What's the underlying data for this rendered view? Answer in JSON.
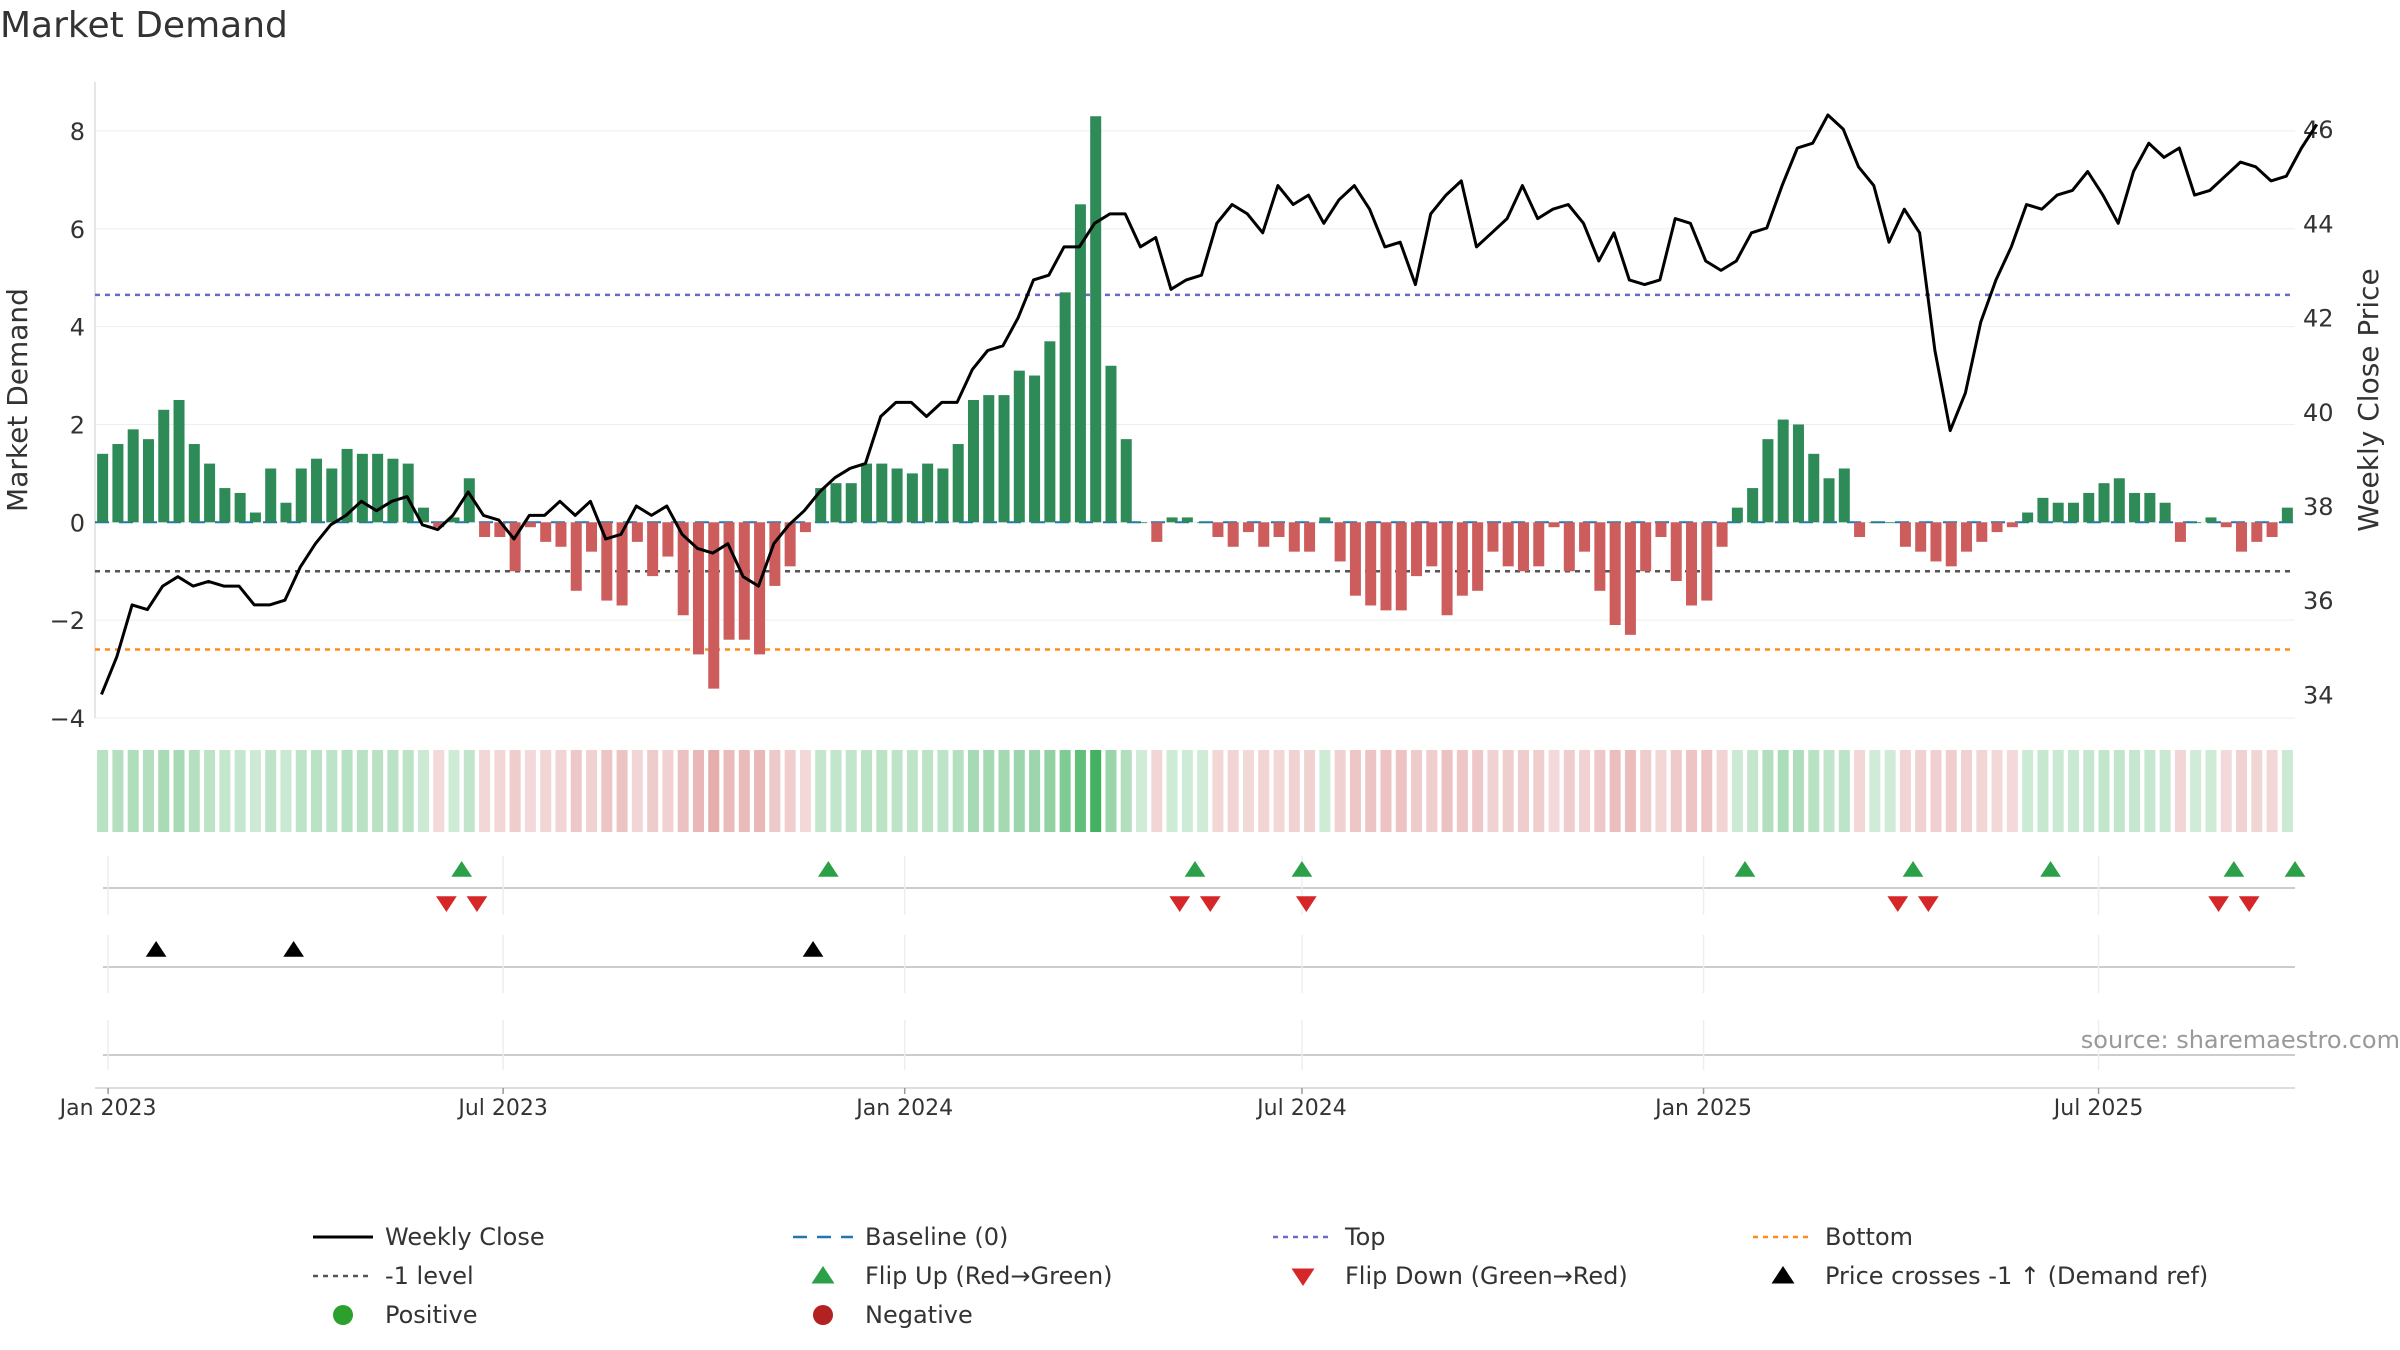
{
  "chart_data": {
    "type": "bar+line",
    "title": "Market Demand",
    "ylabel_left": "Market Demand",
    "ylabel_right": "Weekly Close Price",
    "ylim_left": [
      -4,
      9
    ],
    "ylim_right": [
      33.5,
      47
    ],
    "yticks_left": [
      8,
      6,
      4,
      2,
      0,
      -2,
      -4
    ],
    "yticks_left_labels": [
      "8",
      "6",
      "4",
      "2",
      "0",
      "−2",
      "−4"
    ],
    "yticks_right": [
      46,
      44,
      42,
      40,
      38,
      36,
      34
    ],
    "x_start": "2022-12-26",
    "x_end": "2025-09-29",
    "xticks": [
      {
        "date": "2023-01-01",
        "label": "Jan 2023"
      },
      {
        "date": "2023-07-01",
        "label": "Jul 2023"
      },
      {
        "date": "2024-01-01",
        "label": "Jan 2024"
      },
      {
        "date": "2024-07-01",
        "label": "Jul 2024"
      },
      {
        "date": "2025-01-01",
        "label": "Jan 2025"
      },
      {
        "date": "2025-07-01",
        "label": "Jul 2025"
      }
    ],
    "bar_start_date": "2022-12-26",
    "bar_interval_days": 7,
    "demand": [
      1.4,
      1.6,
      1.9,
      1.7,
      2.3,
      2.5,
      1.6,
      1.2,
      0.7,
      0.6,
      0.2,
      1.1,
      0.4,
      1.1,
      1.3,
      1.1,
      1.5,
      1.4,
      1.4,
      1.3,
      1.2,
      0.3,
      -0.1,
      0.1,
      0.9,
      -0.3,
      -0.3,
      -1.0,
      -0.1,
      -0.4,
      -0.5,
      -1.4,
      -0.6,
      -1.6,
      -1.7,
      -0.4,
      -1.1,
      -0.7,
      -1.9,
      -2.7,
      -3.4,
      -2.4,
      -2.4,
      -2.7,
      -1.3,
      -0.9,
      -0.2,
      0.7,
      0.8,
      0.8,
      1.2,
      1.2,
      1.1,
      1.0,
      1.2,
      1.1,
      1.6,
      2.5,
      2.6,
      2.6,
      3.1,
      3.0,
      3.7,
      4.7,
      6.5,
      8.3,
      3.2,
      1.7,
      0.0,
      -0.4,
      0.1,
      0.1,
      0.0,
      -0.3,
      -0.5,
      -0.2,
      -0.5,
      -0.3,
      -0.6,
      -0.6,
      0.1,
      -0.8,
      -1.5,
      -1.7,
      -1.8,
      -1.8,
      -1.1,
      -0.9,
      -1.9,
      -1.5,
      -1.4,
      -0.6,
      -0.9,
      -1.0,
      -0.9,
      -0.1,
      -1.0,
      -0.6,
      -1.4,
      -2.1,
      -2.3,
      -1.0,
      -0.3,
      -1.2,
      -1.7,
      -1.6,
      -0.5,
      0.3,
      0.7,
      1.7,
      2.1,
      2.0,
      1.4,
      0.9,
      1.1,
      -0.3,
      0.0,
      0.0,
      -0.5,
      -0.6,
      -0.8,
      -0.9,
      -0.6,
      -0.4,
      -0.2,
      -0.1,
      0.2,
      0.5,
      0.4,
      0.4,
      0.6,
      0.8,
      0.9,
      0.6,
      0.6,
      0.4,
      -0.4,
      0.0,
      0.1,
      -0.1,
      -0.6,
      -0.4,
      -0.3,
      0.3
    ],
    "price_series": [
      [
        "2022-12-29",
        34.0
      ],
      [
        "2023-01-05",
        34.8
      ],
      [
        "2023-01-12",
        35.9
      ],
      [
        "2023-01-19",
        35.8
      ],
      [
        "2023-01-26",
        36.3
      ],
      [
        "2023-02-02",
        36.5
      ],
      [
        "2023-02-09",
        36.3
      ],
      [
        "2023-02-16",
        36.4
      ],
      [
        "2023-02-23",
        36.3
      ],
      [
        "2023-03-02",
        36.3
      ],
      [
        "2023-03-09",
        35.9
      ],
      [
        "2023-03-16",
        35.9
      ],
      [
        "2023-03-23",
        36.0
      ],
      [
        "2023-03-30",
        36.7
      ],
      [
        "2023-04-06",
        37.2
      ],
      [
        "2023-04-13",
        37.6
      ],
      [
        "2023-04-20",
        37.8
      ],
      [
        "2023-04-27",
        38.1
      ],
      [
        "2023-05-04",
        37.9
      ],
      [
        "2023-05-11",
        38.1
      ],
      [
        "2023-05-18",
        38.2
      ],
      [
        "2023-05-25",
        37.6
      ],
      [
        "2023-06-01",
        37.5
      ],
      [
        "2023-06-08",
        37.8
      ],
      [
        "2023-06-15",
        38.3
      ],
      [
        "2023-06-22",
        37.8
      ],
      [
        "2023-06-29",
        37.7
      ],
      [
        "2023-07-06",
        37.3
      ],
      [
        "2023-07-13",
        37.8
      ],
      [
        "2023-07-20",
        37.8
      ],
      [
        "2023-07-27",
        38.1
      ],
      [
        "2023-08-03",
        37.8
      ],
      [
        "2023-08-10",
        38.1
      ],
      [
        "2023-08-17",
        37.3
      ],
      [
        "2023-08-24",
        37.4
      ],
      [
        "2023-08-31",
        38.0
      ],
      [
        "2023-09-07",
        37.8
      ],
      [
        "2023-09-14",
        38.0
      ],
      [
        "2023-09-21",
        37.4
      ],
      [
        "2023-09-28",
        37.1
      ],
      [
        "2023-10-05",
        37.0
      ],
      [
        "2023-10-12",
        37.2
      ],
      [
        "2023-10-19",
        36.5
      ],
      [
        "2023-10-26",
        36.3
      ],
      [
        "2023-11-02",
        37.2
      ],
      [
        "2023-11-09",
        37.6
      ],
      [
        "2023-11-16",
        37.9
      ],
      [
        "2023-11-23",
        38.3
      ],
      [
        "2023-11-30",
        38.6
      ],
      [
        "2023-12-07",
        38.8
      ],
      [
        "2023-12-14",
        38.9
      ],
      [
        "2023-12-21",
        39.9
      ],
      [
        "2023-12-28",
        40.2
      ],
      [
        "2024-01-04",
        40.2
      ],
      [
        "2024-01-11",
        39.9
      ],
      [
        "2024-01-18",
        40.2
      ],
      [
        "2024-01-25",
        40.2
      ],
      [
        "2024-02-01",
        40.9
      ],
      [
        "2024-02-08",
        41.3
      ],
      [
        "2024-02-15",
        41.4
      ],
      [
        "2024-02-22",
        42.0
      ],
      [
        "2024-02-29",
        42.8
      ],
      [
        "2024-03-07",
        42.9
      ],
      [
        "2024-03-14",
        43.5
      ],
      [
        "2024-03-21",
        43.5
      ],
      [
        "2024-03-28",
        44.0
      ],
      [
        "2024-04-04",
        44.2
      ],
      [
        "2024-04-11",
        44.2
      ],
      [
        "2024-04-18",
        43.5
      ],
      [
        "2024-04-25",
        43.7
      ],
      [
        "2024-05-02",
        42.6
      ],
      [
        "2024-05-09",
        42.8
      ],
      [
        "2024-05-16",
        42.9
      ],
      [
        "2024-05-23",
        44.0
      ],
      [
        "2024-05-30",
        44.4
      ],
      [
        "2024-06-06",
        44.2
      ],
      [
        "2024-06-13",
        43.8
      ],
      [
        "2024-06-20",
        44.8
      ],
      [
        "2024-06-27",
        44.4
      ],
      [
        "2024-07-04",
        44.6
      ],
      [
        "2024-07-11",
        44.0
      ],
      [
        "2024-07-18",
        44.5
      ],
      [
        "2024-07-25",
        44.8
      ],
      [
        "2024-08-01",
        44.3
      ],
      [
        "2024-08-08",
        43.5
      ],
      [
        "2024-08-15",
        43.6
      ],
      [
        "2024-08-22",
        42.7
      ],
      [
        "2024-08-29",
        44.2
      ],
      [
        "2024-09-05",
        44.6
      ],
      [
        "2024-09-12",
        44.9
      ],
      [
        "2024-09-19",
        43.5
      ],
      [
        "2024-09-26",
        43.8
      ],
      [
        "2024-10-03",
        44.1
      ],
      [
        "2024-10-10",
        44.8
      ],
      [
        "2024-10-17",
        44.1
      ],
      [
        "2024-10-24",
        44.3
      ],
      [
        "2024-10-31",
        44.4
      ],
      [
        "2024-11-07",
        44.0
      ],
      [
        "2024-11-14",
        43.2
      ],
      [
        "2024-11-21",
        43.8
      ],
      [
        "2024-11-28",
        42.8
      ],
      [
        "2024-12-05",
        42.7
      ],
      [
        "2024-12-12",
        42.8
      ],
      [
        "2024-12-19",
        44.1
      ],
      [
        "2024-12-26",
        44.0
      ],
      [
        "2025-01-02",
        43.2
      ],
      [
        "2025-01-09",
        43.0
      ],
      [
        "2025-01-16",
        43.2
      ],
      [
        "2025-01-23",
        43.8
      ],
      [
        "2025-01-30",
        43.9
      ],
      [
        "2025-02-06",
        44.8
      ],
      [
        "2025-02-13",
        45.6
      ],
      [
        "2025-02-20",
        45.7
      ],
      [
        "2025-02-27",
        46.3
      ],
      [
        "2025-03-06",
        46.0
      ],
      [
        "2025-03-13",
        45.2
      ],
      [
        "2025-03-20",
        44.8
      ],
      [
        "2025-03-27",
        43.6
      ],
      [
        "2025-04-03",
        44.3
      ],
      [
        "2025-04-10",
        43.8
      ],
      [
        "2025-04-17",
        41.3
      ],
      [
        "2025-04-24",
        39.6
      ],
      [
        "2025-05-01",
        40.4
      ],
      [
        "2025-05-08",
        41.9
      ],
      [
        "2025-05-15",
        42.8
      ],
      [
        "2025-05-22",
        43.5
      ],
      [
        "2025-05-29",
        44.4
      ],
      [
        "2025-06-05",
        44.3
      ],
      [
        "2025-06-12",
        44.6
      ],
      [
        "2025-06-19",
        44.7
      ],
      [
        "2025-06-26",
        45.1
      ],
      [
        "2025-07-03",
        44.6
      ],
      [
        "2025-07-10",
        44.0
      ],
      [
        "2025-07-17",
        45.1
      ],
      [
        "2025-07-24",
        45.7
      ],
      [
        "2025-07-31",
        45.4
      ],
      [
        "2025-08-07",
        45.6
      ],
      [
        "2025-08-14",
        44.6
      ],
      [
        "2025-08-21",
        44.7
      ],
      [
        "2025-08-28",
        45.0
      ],
      [
        "2025-09-04",
        45.3
      ],
      [
        "2025-09-11",
        45.2
      ],
      [
        "2025-09-18",
        44.9
      ],
      [
        "2025-09-25",
        45.0
      ],
      [
        "2025-10-02",
        45.6
      ],
      [
        "2025-10-09",
        46.1
      ]
    ],
    "reference_lines": [
      {
        "name": "Baseline (0)",
        "value": 0,
        "color": "#1f77b4",
        "style": "dashed"
      },
      {
        "name": "Top",
        "value": 4.65,
        "color": "#6a6acd",
        "style": "dotted"
      },
      {
        "name": "-1 level",
        "value": -1.0,
        "color": "#555555",
        "style": "dotted"
      },
      {
        "name": "Bottom",
        "value": -2.6,
        "color": "#ff8c1a",
        "style": "dotted"
      }
    ],
    "flip_up_dates": [
      "2023-06-12",
      "2023-11-27",
      "2024-05-13",
      "2024-07-01",
      "2025-01-20",
      "2025-04-07",
      "2025-06-09",
      "2025-09-01",
      "2025-09-29"
    ],
    "flip_down_dates": [
      "2023-06-05",
      "2023-06-19",
      "2024-05-06",
      "2024-05-20",
      "2024-07-03",
      "2025-03-31",
      "2025-04-14",
      "2025-08-25",
      "2025-09-08"
    ],
    "price_cross_dates": [
      "2023-01-23",
      "2023-03-27",
      "2023-11-20"
    ],
    "source": "source: sharemaestro.com",
    "legend": [
      {
        "label": "Weekly Close",
        "symbol": "line",
        "color": "#000000"
      },
      {
        "label": "Baseline (0)",
        "symbol": "dashed",
        "color": "#1f77b4"
      },
      {
        "label": "Top",
        "symbol": "dotted",
        "color": "#6a6acd"
      },
      {
        "label": "Bottom",
        "symbol": "dotted",
        "color": "#ff8c1a"
      },
      {
        "label": "-1 level",
        "symbol": "dotted",
        "color": "#555555"
      },
      {
        "label": "Flip Up (Red→Green)",
        "symbol": "triangle-up",
        "color": "#2ca048"
      },
      {
        "label": "Flip Down (Green→Red)",
        "symbol": "triangle-down",
        "color": "#d62728"
      },
      {
        "label": "Price crosses -1 ↑ (Demand ref)",
        "symbol": "triangle-up",
        "color": "#000000"
      },
      {
        "label": "Positive",
        "symbol": "circle",
        "color": "#2ca02c"
      },
      {
        "label": "Negative",
        "symbol": "circle",
        "color": "#b22222"
      }
    ],
    "colors": {
      "positive_bar": "#2e8b57",
      "negative_bar": "#cd5c5c",
      "price_line": "#000000",
      "flip_up": "#2ca048",
      "flip_down": "#d62728",
      "price_cross": "#000000"
    }
  }
}
